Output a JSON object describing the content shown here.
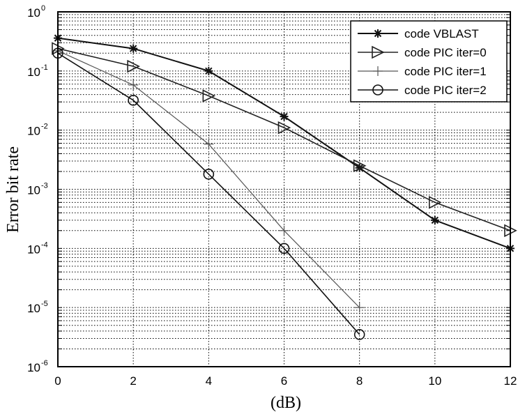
{
  "chart_data": {
    "type": "line",
    "title": "",
    "xlabel": "(dB)",
    "ylabel": "Error bit rate",
    "yscale": "log",
    "xlim": [
      0,
      12
    ],
    "ylim": [
      1e-06,
      1
    ],
    "grid": true,
    "legend_position": "upper right",
    "x_ticks": [
      0,
      2,
      4,
      6,
      8,
      10,
      12
    ],
    "y_ticks": [
      {
        "base": "10",
        "exp": "0"
      },
      {
        "base": "10",
        "exp": "-1"
      },
      {
        "base": "10",
        "exp": "-2"
      },
      {
        "base": "10",
        "exp": "-3"
      },
      {
        "base": "10",
        "exp": "-4"
      },
      {
        "base": "10",
        "exp": "-5"
      },
      {
        "base": "10",
        "exp": "-6"
      }
    ],
    "series": [
      {
        "name": "code VBLAST",
        "marker": "asterisk",
        "color": "#111111",
        "width": 2,
        "x": [
          0,
          2,
          4,
          6,
          8,
          10,
          12
        ],
        "values": [
          0.36,
          0.24,
          0.1,
          0.017,
          0.0023,
          0.0003,
          0.0001
        ]
      },
      {
        "name": "code PIC iter=0",
        "marker": "triangle-right",
        "color": "#222222",
        "width": 1.6,
        "x": [
          0,
          2,
          4,
          6,
          8,
          10,
          12
        ],
        "values": [
          0.24,
          0.12,
          0.038,
          0.011,
          0.0025,
          0.0006,
          0.0002
        ]
      },
      {
        "name": "code PIC iter=1",
        "marker": "plus",
        "color": "#555555",
        "width": 1.2,
        "x": [
          0,
          2,
          4,
          6,
          8
        ],
        "values": [
          0.22,
          0.058,
          0.0058,
          0.0002,
          1e-05
        ]
      },
      {
        "name": "code PIC iter=2",
        "marker": "circle",
        "color": "#111111",
        "width": 1.6,
        "x": [
          0,
          2,
          4,
          6,
          8
        ],
        "values": [
          0.2,
          0.032,
          0.0018,
          0.0001,
          3.5e-06
        ]
      }
    ]
  }
}
